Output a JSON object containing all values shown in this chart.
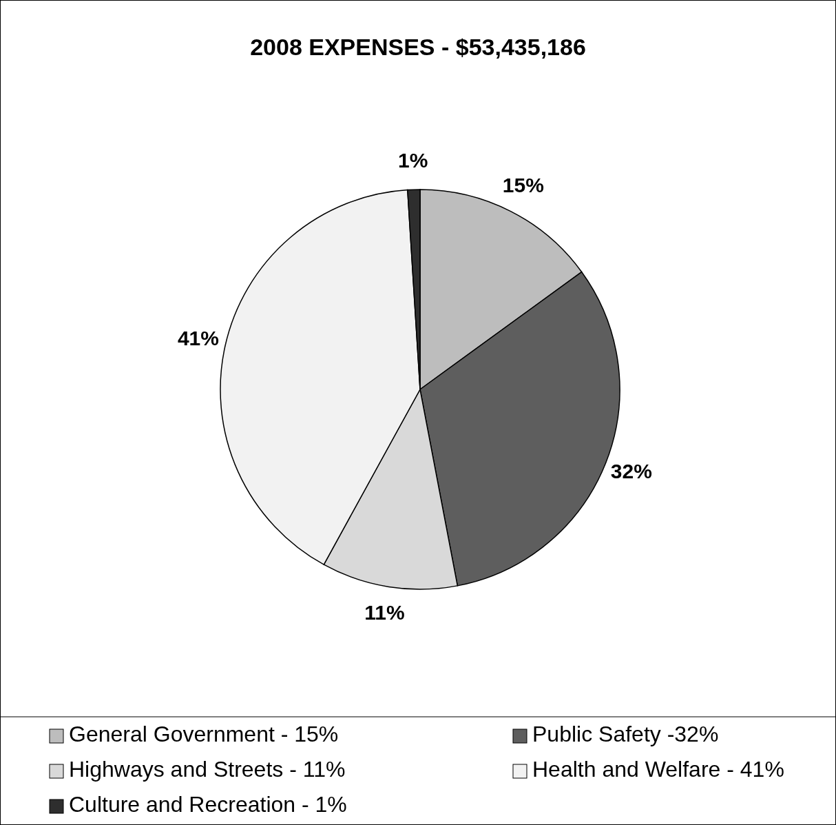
{
  "chart_data": {
    "type": "pie",
    "title": "2008 EXPENSES - $53,435,186",
    "categories": [
      "General Government - 15%",
      "Public Safety -32%",
      "Highways and Streets - 11%",
      "Health and Welfare - 41%",
      "Culture and Recreation - 1%"
    ],
    "values": [
      15,
      32,
      11,
      41,
      1
    ],
    "value_labels": [
      "15%",
      "32%",
      "11%",
      "41%",
      "1%"
    ],
    "colors": [
      "#bdbdbd",
      "#5e5e5e",
      "#d9d9d9",
      "#f2f2f2",
      "#2e2e2e"
    ],
    "legend": "bottom"
  }
}
